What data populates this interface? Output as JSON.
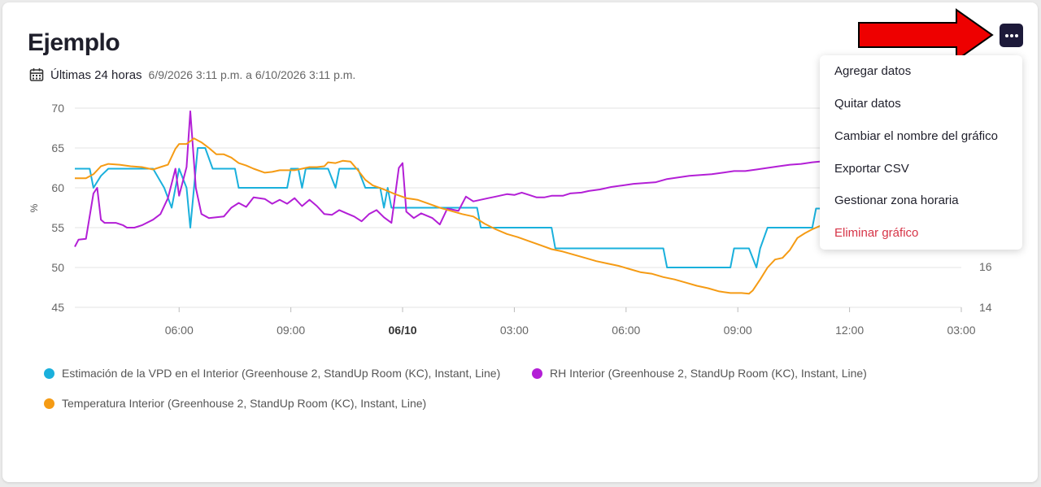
{
  "card": {
    "title": "Ejemplo",
    "range_label": "Últimas 24 horas",
    "range_dates": "6/9/2026 3:11 p.m. a 6/10/2026 3:11 p.m.",
    "icons": {
      "calendar": "calendar-icon",
      "menu": "more-horizontal-icon",
      "arrow": "red-arrow-annotation"
    }
  },
  "menu": {
    "items": [
      {
        "label": "Agregar datos"
      },
      {
        "label": "Quitar datos"
      },
      {
        "label": "Cambiar el nombre del gráfico"
      },
      {
        "label": "Exportar CSV"
      },
      {
        "label": "Gestionar zona horaria"
      },
      {
        "label": "Eliminar gráfico"
      }
    ]
  },
  "chart_data": {
    "type": "line",
    "ylabel": "%",
    "ylim": [
      45,
      70
    ],
    "y_ticks": [
      "70",
      "65",
      "60",
      "55",
      "50",
      "45"
    ],
    "y2_ticks": [
      "16",
      "14"
    ],
    "x_ticks": [
      "06:00",
      "09:00",
      "06/10",
      "03:00",
      "06:00",
      "09:00",
      "12:00",
      "03:00"
    ],
    "x_range": [
      3.2,
      27.0
    ],
    "grid": true,
    "legend_position": "bottom",
    "series": [
      {
        "name": "Estimación de la VPD en el Interior (Greenhouse 2, StandUp Room (KC), Instant, Line)",
        "color": "#1ab0dc",
        "points": [
          [
            3.2,
            62.4
          ],
          [
            3.6,
            62.4
          ],
          [
            3.7,
            60
          ],
          [
            3.9,
            61.5
          ],
          [
            4.1,
            62.4
          ],
          [
            5.0,
            62.4
          ],
          [
            5.3,
            62.4
          ],
          [
            5.6,
            60
          ],
          [
            5.8,
            57.5
          ],
          [
            6.0,
            62.4
          ],
          [
            6.2,
            60
          ],
          [
            6.3,
            55
          ],
          [
            6.5,
            65
          ],
          [
            6.7,
            65
          ],
          [
            6.9,
            62.4
          ],
          [
            7.5,
            62.4
          ],
          [
            7.6,
            60
          ],
          [
            8.0,
            60
          ],
          [
            8.9,
            60
          ],
          [
            9.0,
            62.4
          ],
          [
            9.2,
            62.4
          ],
          [
            9.3,
            60
          ],
          [
            9.4,
            62.4
          ],
          [
            10.0,
            62.4
          ],
          [
            10.2,
            60
          ],
          [
            10.3,
            62.4
          ],
          [
            10.8,
            62.4
          ],
          [
            11.0,
            60
          ],
          [
            11.4,
            60
          ],
          [
            11.5,
            57.5
          ],
          [
            11.6,
            60
          ],
          [
            11.7,
            57.5
          ],
          [
            11.8,
            57.5
          ],
          [
            13.0,
            57.5
          ],
          [
            14.0,
            57.5
          ],
          [
            14.1,
            55
          ],
          [
            15.0,
            55
          ],
          [
            16.0,
            55
          ],
          [
            16.1,
            52.4
          ],
          [
            17.0,
            52.4
          ],
          [
            18.5,
            52.4
          ],
          [
            19.0,
            52.4
          ],
          [
            19.1,
            50
          ],
          [
            20.0,
            50
          ],
          [
            20.8,
            50
          ],
          [
            20.9,
            52.4
          ],
          [
            21.3,
            52.4
          ],
          [
            21.5,
            50
          ],
          [
            21.6,
            52.4
          ],
          [
            21.8,
            55
          ],
          [
            22.2,
            55
          ],
          [
            23.0,
            55
          ],
          [
            23.1,
            57.4
          ],
          [
            23.7,
            57.4
          ],
          [
            23.8,
            60
          ],
          [
            24.0,
            60
          ]
        ]
      },
      {
        "name": "RH Interior (Greenhouse 2, StandUp Room (KC), Instant, Line)",
        "color": "#b31fd6",
        "points": [
          [
            3.2,
            52.6
          ],
          [
            3.3,
            53.5
          ],
          [
            3.5,
            53.6
          ],
          [
            3.7,
            59.3
          ],
          [
            3.8,
            60
          ],
          [
            3.9,
            56
          ],
          [
            4.0,
            55.6
          ],
          [
            4.3,
            55.6
          ],
          [
            4.5,
            55.3
          ],
          [
            4.6,
            55
          ],
          [
            4.8,
            55
          ],
          [
            5.0,
            55.3
          ],
          [
            5.3,
            56
          ],
          [
            5.5,
            56.7
          ],
          [
            5.7,
            58.7
          ],
          [
            5.9,
            62.4
          ],
          [
            6.0,
            59
          ],
          [
            6.2,
            62.6
          ],
          [
            6.3,
            69.6
          ],
          [
            6.45,
            60
          ],
          [
            6.6,
            56.7
          ],
          [
            6.8,
            56.2
          ],
          [
            7.0,
            56.3
          ],
          [
            7.2,
            56.4
          ],
          [
            7.4,
            57.5
          ],
          [
            7.6,
            58.1
          ],
          [
            7.8,
            57.6
          ],
          [
            8.0,
            58.8
          ],
          [
            8.3,
            58.6
          ],
          [
            8.5,
            58
          ],
          [
            8.7,
            58.5
          ],
          [
            8.9,
            58
          ],
          [
            9.1,
            58.7
          ],
          [
            9.3,
            57.7
          ],
          [
            9.5,
            58.5
          ],
          [
            9.7,
            57.7
          ],
          [
            9.9,
            56.7
          ],
          [
            10.1,
            56.6
          ],
          [
            10.3,
            57.2
          ],
          [
            10.5,
            56.8
          ],
          [
            10.7,
            56.4
          ],
          [
            10.9,
            55.8
          ],
          [
            11.1,
            56.7
          ],
          [
            11.3,
            57.2
          ],
          [
            11.5,
            56.3
          ],
          [
            11.7,
            55.6
          ],
          [
            11.9,
            62.5
          ],
          [
            12.0,
            63.1
          ],
          [
            12.1,
            57
          ],
          [
            12.3,
            56.2
          ],
          [
            12.5,
            56.8
          ],
          [
            12.8,
            56.2
          ],
          [
            13.0,
            55.4
          ],
          [
            13.2,
            57.4
          ],
          [
            13.5,
            57.1
          ],
          [
            13.7,
            58.9
          ],
          [
            13.9,
            58.3
          ],
          [
            14.1,
            58.5
          ],
          [
            14.3,
            58.7
          ],
          [
            14.5,
            58.9
          ],
          [
            14.8,
            59.2
          ],
          [
            15.0,
            59.1
          ],
          [
            15.2,
            59.4
          ],
          [
            15.4,
            59.1
          ],
          [
            15.6,
            58.8
          ],
          [
            15.8,
            58.8
          ],
          [
            16.0,
            59
          ],
          [
            16.3,
            59
          ],
          [
            16.5,
            59.3
          ],
          [
            16.8,
            59.4
          ],
          [
            17.0,
            59.6
          ],
          [
            17.3,
            59.8
          ],
          [
            17.6,
            60.1
          ],
          [
            17.9,
            60.3
          ],
          [
            18.2,
            60.5
          ],
          [
            18.5,
            60.6
          ],
          [
            18.8,
            60.7
          ],
          [
            19.1,
            61.1
          ],
          [
            19.4,
            61.3
          ],
          [
            19.7,
            61.5
          ],
          [
            20.0,
            61.6
          ],
          [
            20.3,
            61.7
          ],
          [
            20.6,
            61.9
          ],
          [
            20.9,
            62.1
          ],
          [
            21.2,
            62.1
          ],
          [
            21.5,
            62.3
          ],
          [
            21.8,
            62.5
          ],
          [
            22.1,
            62.7
          ],
          [
            22.4,
            62.9
          ],
          [
            22.7,
            63
          ],
          [
            23.0,
            63.2
          ],
          [
            23.2,
            63.3
          ],
          [
            23.4,
            63.3
          ],
          [
            23.5,
            63.5
          ],
          [
            23.6,
            65.6
          ],
          [
            23.8,
            64.6
          ],
          [
            24.0,
            63.7
          ],
          [
            24.2,
            61.8
          ],
          [
            24.3,
            61.2
          ],
          [
            24.4,
            65
          ],
          [
            24.5,
            62.6
          ],
          [
            24.7,
            68.5
          ],
          [
            24.85,
            63.5
          ],
          [
            25.0,
            61.8
          ],
          [
            25.2,
            61.7
          ],
          [
            25.3,
            61.1
          ],
          [
            25.4,
            62.6
          ],
          [
            25.6,
            60.9
          ],
          [
            25.8,
            60.3
          ],
          [
            26.0,
            60.1
          ],
          [
            26.1,
            60.2
          ],
          [
            26.2,
            58.7
          ],
          [
            26.4,
            58.2
          ],
          [
            26.6,
            58
          ],
          [
            26.8,
            57.8
          ],
          [
            27.0,
            57.6
          ]
        ]
      },
      {
        "name": "Temperatura Interior (Greenhouse 2, StandUp Room (KC), Instant, Line)",
        "color": "#f59b14",
        "points": [
          [
            3.2,
            61.2
          ],
          [
            3.5,
            61.2
          ],
          [
            3.7,
            61.7
          ],
          [
            3.9,
            62.7
          ],
          [
            4.1,
            63
          ],
          [
            4.4,
            62.9
          ],
          [
            4.7,
            62.7
          ],
          [
            5.0,
            62.6
          ],
          [
            5.3,
            62.3
          ],
          [
            5.5,
            62.6
          ],
          [
            5.7,
            62.9
          ],
          [
            5.9,
            64.9
          ],
          [
            6.0,
            65.5
          ],
          [
            6.2,
            65.5
          ],
          [
            6.4,
            66.2
          ],
          [
            6.6,
            65.7
          ],
          [
            6.8,
            65
          ],
          [
            7.0,
            64.2
          ],
          [
            7.2,
            64.2
          ],
          [
            7.4,
            63.8
          ],
          [
            7.6,
            63.1
          ],
          [
            7.8,
            62.8
          ],
          [
            8.0,
            62.4
          ],
          [
            8.3,
            61.9
          ],
          [
            8.5,
            62
          ],
          [
            8.7,
            62.2
          ],
          [
            8.9,
            62.2
          ],
          [
            9.1,
            62.2
          ],
          [
            9.3,
            62.4
          ],
          [
            9.5,
            62.6
          ],
          [
            9.7,
            62.6
          ],
          [
            9.9,
            62.7
          ],
          [
            10.0,
            63.2
          ],
          [
            10.2,
            63.1
          ],
          [
            10.4,
            63.4
          ],
          [
            10.6,
            63.3
          ],
          [
            10.8,
            62.2
          ],
          [
            11.0,
            61
          ],
          [
            11.2,
            60.3
          ],
          [
            11.5,
            59.8
          ],
          [
            11.8,
            59.2
          ],
          [
            12.1,
            58.7
          ],
          [
            12.4,
            58.5
          ],
          [
            12.7,
            58
          ],
          [
            13.0,
            57.5
          ],
          [
            13.3,
            57.1
          ],
          [
            13.6,
            56.7
          ],
          [
            13.9,
            56.4
          ],
          [
            14.2,
            55.5
          ],
          [
            14.5,
            54.8
          ],
          [
            14.8,
            54.2
          ],
          [
            15.1,
            53.8
          ],
          [
            15.4,
            53.3
          ],
          [
            15.7,
            52.8
          ],
          [
            16.0,
            52.3
          ],
          [
            16.3,
            52
          ],
          [
            16.6,
            51.6
          ],
          [
            16.9,
            51.2
          ],
          [
            17.2,
            50.8
          ],
          [
            17.5,
            50.5
          ],
          [
            17.8,
            50.2
          ],
          [
            18.1,
            49.8
          ],
          [
            18.4,
            49.4
          ],
          [
            18.7,
            49.2
          ],
          [
            19.0,
            48.8
          ],
          [
            19.3,
            48.5
          ],
          [
            19.6,
            48.1
          ],
          [
            19.9,
            47.7
          ],
          [
            20.2,
            47.4
          ],
          [
            20.5,
            47
          ],
          [
            20.8,
            46.8
          ],
          [
            21.1,
            46.8
          ],
          [
            21.3,
            46.7
          ],
          [
            21.4,
            47.1
          ],
          [
            21.6,
            48.5
          ],
          [
            21.8,
            50
          ],
          [
            22.0,
            51
          ],
          [
            22.2,
            51.2
          ],
          [
            22.4,
            52.2
          ],
          [
            22.6,
            53.7
          ],
          [
            22.8,
            54.3
          ],
          [
            23.0,
            54.8
          ],
          [
            23.3,
            55.4
          ],
          [
            23.6,
            55.9
          ],
          [
            23.9,
            56.2
          ],
          [
            24.0,
            56.4
          ],
          [
            24.3,
            57.2
          ],
          [
            24.6,
            57.9
          ],
          [
            24.8,
            58.6
          ],
          [
            25.0,
            59.3
          ],
          [
            25.3,
            59.8
          ]
        ]
      }
    ]
  }
}
